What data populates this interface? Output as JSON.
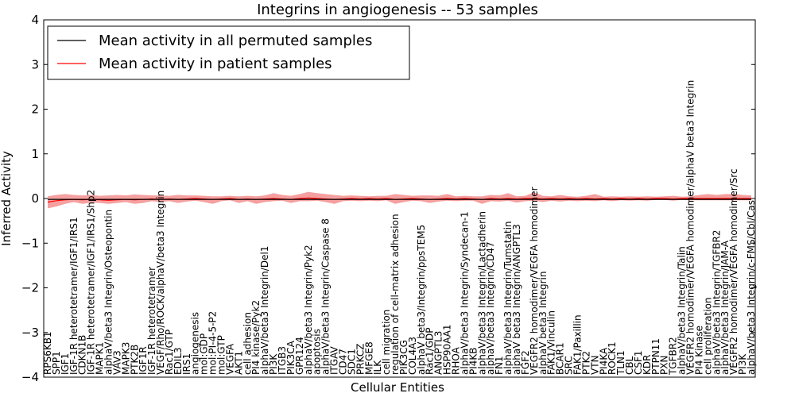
{
  "chart_data": {
    "type": "line",
    "title": "Integrins in angiogenesis -- 53 samples",
    "xlabel": "Cellular Entities",
    "ylabel": "Inferred Activity",
    "ylim": [
      -4,
      4
    ],
    "yticks": [
      "−4",
      "−3",
      "−2",
      "−1",
      "0",
      "1",
      "2",
      "3",
      "4"
    ],
    "grid": false,
    "legend_position": "top-left",
    "colors": {
      "permuted": "#000000",
      "patient": "#ff0000",
      "band": "#f28080",
      "permuted_band": "#b0b0b0"
    },
    "categories": [
      "RPS6KB1",
      "SPP1",
      "IGF1",
      "IGF-1R heterotetramer/IGF1/IRS1",
      "CDKN1B",
      "IGF-1R heterotetramer/IGF1/IRS1/Shp2",
      "MAPK1",
      "alphaV/beta3 Integrin/Osteopontin",
      "VAV3",
      "MAPK3",
      "PTK2B",
      "IGF1R",
      "IGF-1R heterotetramer",
      "VEGF/Rho/ROCK/alphaV/beta3 Integrin",
      "Rac1/GTP",
      "EDIL3",
      "IRS1",
      "angiogenesis",
      "mol:GDP",
      "mol:PI-4-5-P2",
      "mol:GTP",
      "VEGFA",
      "AKT1",
      "cell adhesion",
      "PI4 kinase/Pyk2",
      "alphaV/beta3 Integrin/Del1",
      "PI3K",
      "ITGB3",
      "PIK3CA",
      "GPR124",
      "alphaV/beta3 Integrin/Pyk2",
      "apoptosis",
      "alphaV/beta3 Integrin/Caspase 8",
      "ITGAV",
      "CD47",
      "SDC1",
      "PRKCZ",
      "MFGE8",
      "ILK",
      "cell migration",
      "regulation of cell-matrix adhesion",
      "PIK3CG",
      "COL4A3",
      "alphaV beta3/Integrin/ppsTEM5",
      "Rac1/GDP",
      "ANGPTL3",
      "HSP90AA1",
      "RHOA",
      "alphaV/beta3 Integrin/Syndecan-1",
      "PI4KB",
      "alphaV/beta3 Integrin/Lactadherin",
      "alphaV/beta3 Integrin/CD47",
      "FN1",
      "alphaV/beta3 Integrin/Tumstatin",
      "alphaV beta3 Integrin/ANGPTL3",
      "FGF2",
      "VEGFR2 homodimer/VEGFA homodimer",
      "alphaV beta3 Integrin",
      "FAK1/Vinculin",
      "BCAR1",
      "SRC",
      "FAK1/Paxillin",
      "PTK2",
      "VTN",
      "PI4KA",
      "ROCK1",
      "TLN1",
      "CBL",
      "CSF1",
      "KDR",
      "PTPN11",
      "PXN",
      "TGFBR2",
      "alphaV/beta3 Integrin/Talin",
      "VEGFR2 homodimer/VEGFA homodimer/alphaV beta3 Integrin",
      "PI4 Kinase",
      "cell proliferation",
      "alphaV/beta3 Integrin/TGFBR2",
      "alphaV/beta3 Integrin/JAM-A",
      "VEGFR2 homodimer/VEGFA homodimer/Src",
      "PI3K",
      "alphaV/beta3 Integrin/c-FMS/Cbl/Cas"
    ],
    "series": [
      {
        "name": "Mean activity in all permuted samples",
        "values": [
          -0.02,
          -0.02,
          -0.02,
          -0.02,
          -0.02,
          -0.02,
          -0.02,
          -0.02,
          -0.02,
          -0.02,
          -0.02,
          -0.02,
          -0.02,
          -0.02,
          -0.02,
          -0.02,
          -0.02,
          -0.02,
          -0.02,
          -0.02,
          -0.02,
          -0.02,
          -0.02,
          -0.02,
          -0.02,
          -0.02,
          -0.02,
          -0.02,
          -0.02,
          -0.02,
          -0.02,
          -0.02,
          -0.02,
          -0.02,
          -0.02,
          -0.02,
          -0.02,
          -0.02,
          -0.02,
          -0.02,
          -0.02,
          -0.02,
          -0.02,
          -0.02,
          -0.02,
          -0.02,
          -0.02,
          -0.02,
          -0.02,
          -0.02,
          -0.02,
          -0.02,
          -0.02,
          -0.02,
          -0.02,
          -0.02,
          -0.02,
          -0.02,
          -0.02,
          -0.02,
          -0.02,
          -0.02,
          -0.02,
          -0.02,
          -0.02,
          -0.02,
          -0.02,
          -0.02,
          -0.02,
          -0.02,
          -0.02,
          -0.02,
          -0.02,
          -0.02,
          -0.02,
          -0.02,
          -0.02,
          -0.02,
          -0.02,
          -0.02,
          -0.02,
          -0.02
        ]
      },
      {
        "name": "Mean activity in patient samples",
        "values": [
          -0.08,
          -0.05,
          -0.03,
          -0.02,
          -0.03,
          -0.02,
          -0.03,
          -0.04,
          -0.03,
          -0.02,
          -0.03,
          -0.02,
          -0.01,
          -0.02,
          -0.01,
          -0.02,
          -0.01,
          0.0,
          -0.01,
          -0.02,
          -0.01,
          0.0,
          -0.02,
          -0.01,
          -0.02,
          -0.01,
          0.0,
          -0.01,
          -0.02,
          0.0,
          0.01,
          0.0,
          -0.01,
          -0.02,
          -0.01,
          0.0,
          -0.01,
          0.0,
          -0.01,
          0.0,
          -0.02,
          -0.01,
          0.0,
          -0.01,
          -0.02,
          -0.01,
          0.0,
          -0.01,
          0.0,
          -0.01,
          -0.02,
          0.0,
          -0.01,
          0.0,
          -0.01,
          0.0,
          0.0,
          -0.01,
          0.0,
          -0.01,
          0.0,
          -0.01,
          0.0,
          -0.01,
          0.0,
          -0.01,
          0.0,
          -0.01,
          0.0,
          -0.01,
          0.0,
          0.0,
          -0.01,
          0.0,
          0.0,
          0.0,
          0.0,
          0.0,
          0.0,
          0.0,
          0.0,
          0.0
        ],
        "band_low": [
          -0.22,
          -0.18,
          -0.12,
          -0.08,
          -0.12,
          -0.09,
          -0.1,
          -0.12,
          -0.1,
          -0.08,
          -0.12,
          -0.1,
          -0.06,
          -0.08,
          -0.06,
          -0.1,
          -0.07,
          -0.05,
          -0.08,
          -0.12,
          -0.06,
          -0.04,
          -0.1,
          -0.06,
          -0.12,
          -0.08,
          -0.06,
          -0.05,
          -0.1,
          -0.06,
          -0.06,
          -0.05,
          -0.08,
          -0.12,
          -0.06,
          -0.05,
          -0.06,
          -0.05,
          -0.06,
          -0.04,
          -0.12,
          -0.08,
          -0.05,
          -0.06,
          -0.1,
          -0.07,
          -0.05,
          -0.06,
          -0.05,
          -0.05,
          -0.12,
          -0.06,
          -0.07,
          -0.05,
          -0.09,
          -0.06,
          -0.05,
          -0.08,
          -0.05,
          -0.07,
          -0.05,
          -0.06,
          -0.05,
          -0.06,
          -0.04,
          -0.06,
          -0.04,
          -0.05,
          -0.04,
          -0.05,
          -0.03,
          -0.03,
          -0.05,
          -0.03,
          -0.04,
          -0.04,
          -0.04,
          -0.04,
          -0.04,
          -0.04,
          -0.04,
          -0.04
        ],
        "band_high": [
          0.05,
          0.08,
          0.1,
          0.08,
          0.07,
          0.08,
          0.06,
          0.07,
          0.08,
          0.07,
          0.09,
          0.08,
          0.07,
          0.07,
          0.06,
          0.08,
          0.07,
          0.07,
          0.06,
          0.05,
          0.05,
          0.06,
          0.05,
          0.06,
          0.05,
          0.07,
          0.12,
          0.08,
          0.06,
          0.1,
          0.15,
          0.12,
          0.1,
          0.08,
          0.06,
          0.07,
          0.06,
          0.05,
          0.06,
          0.06,
          0.1,
          0.08,
          0.06,
          0.07,
          0.07,
          0.06,
          0.1,
          0.05,
          0.06,
          0.05,
          0.05,
          0.08,
          0.07,
          0.12,
          0.05,
          0.06,
          0.14,
          0.06,
          0.05,
          0.08,
          0.05,
          0.04,
          0.06,
          0.1,
          0.04,
          0.05,
          0.04,
          0.05,
          0.04,
          0.05,
          0.04,
          0.05,
          0.06,
          0.04,
          0.05,
          0.08,
          0.1,
          0.08,
          0.1,
          0.1,
          0.08,
          0.07
        ]
      }
    ]
  }
}
